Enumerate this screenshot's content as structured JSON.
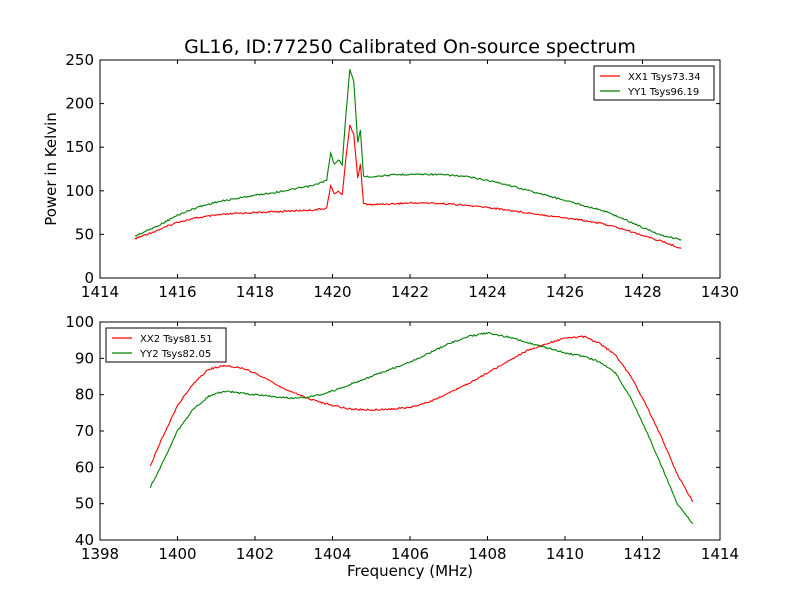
{
  "title": "GL16, ID:77250 Calibrated On-source spectrum",
  "chart_data": [
    {
      "type": "line",
      "xlim": [
        1414,
        1430
      ],
      "ylim": [
        0,
        250
      ],
      "xticks": [
        "1414",
        "1416",
        "1418",
        "1420",
        "1422",
        "1424",
        "1426",
        "1428",
        "1430"
      ],
      "yticks": [
        "0",
        "50",
        "100",
        "150",
        "200",
        "250"
      ],
      "xlabel": "",
      "ylabel": "Power in Kelvin",
      "legend_position": "top-right",
      "series": [
        {
          "name": "XX1 Tsys73.34",
          "color": "#ff0000",
          "x": [
            1414.9,
            1415.5,
            1416.0,
            1416.5,
            1417.0,
            1417.5,
            1418.0,
            1418.5,
            1419.0,
            1419.5,
            1419.85,
            1419.95,
            1420.05,
            1420.15,
            1420.25,
            1420.35,
            1420.45,
            1420.55,
            1420.65,
            1420.72,
            1420.8,
            1420.9,
            1421.5,
            1422.0,
            1422.5,
            1423.0,
            1423.5,
            1424.0,
            1424.5,
            1425.0,
            1425.5,
            1426.0,
            1426.5,
            1427.0,
            1427.5,
            1428.0,
            1428.5,
            1429.0
          ],
          "y": [
            45,
            55,
            64,
            69,
            72,
            74,
            75,
            76,
            77,
            78,
            80,
            106,
            96,
            100,
            95,
            140,
            175,
            165,
            115,
            130,
            86,
            84,
            85,
            86,
            86,
            85,
            83,
            81,
            78,
            75,
            72,
            69,
            66,
            62,
            56,
            49,
            42,
            34
          ]
        },
        {
          "name": "YY1 Tsys96.19",
          "color": "#008000",
          "x": [
            1414.9,
            1415.5,
            1416.0,
            1416.5,
            1417.0,
            1417.5,
            1418.0,
            1418.5,
            1419.0,
            1419.5,
            1419.85,
            1419.95,
            1420.05,
            1420.15,
            1420.25,
            1420.35,
            1420.45,
            1420.55,
            1420.65,
            1420.72,
            1420.8,
            1420.9,
            1421.5,
            1422.0,
            1422.5,
            1423.0,
            1423.5,
            1424.0,
            1424.5,
            1425.0,
            1425.5,
            1426.0,
            1426.5,
            1427.0,
            1427.5,
            1428.0,
            1428.5,
            1429.0
          ],
          "y": [
            48,
            60,
            72,
            81,
            87,
            91,
            95,
            98,
            102,
            106,
            112,
            143,
            130,
            136,
            130,
            190,
            240,
            225,
            155,
            170,
            117,
            116,
            118,
            119,
            119,
            118,
            116,
            112,
            107,
            101,
            95,
            89,
            83,
            77,
            68,
            58,
            49,
            44
          ]
        }
      ]
    },
    {
      "type": "line",
      "xlim": [
        1398,
        1414
      ],
      "ylim": [
        40,
        100
      ],
      "xticks": [
        "1398",
        "1400",
        "1402",
        "1404",
        "1406",
        "1408",
        "1410",
        "1412",
        "1414"
      ],
      "yticks": [
        "40",
        "50",
        "60",
        "70",
        "80",
        "90",
        "100"
      ],
      "xlabel": "Frequency (MHz)",
      "ylabel": "",
      "legend_position": "top-left",
      "series": [
        {
          "name": "XX2 Tsys81.51",
          "color": "#ff0000",
          "x": [
            1399.3,
            1399.6,
            1400.0,
            1400.4,
            1400.8,
            1401.2,
            1401.6,
            1402.0,
            1402.5,
            1403.0,
            1403.5,
            1404.0,
            1404.5,
            1405.0,
            1405.5,
            1406.0,
            1406.5,
            1407.0,
            1407.5,
            1408.0,
            1408.5,
            1409.0,
            1409.5,
            1410.0,
            1410.5,
            1410.9,
            1411.3,
            1411.7,
            1412.1,
            1412.5,
            1412.9,
            1413.3
          ],
          "y": [
            60.5,
            68,
            77,
            83,
            87,
            88,
            87.5,
            86,
            83,
            80.5,
            78.5,
            77,
            76,
            75.8,
            76,
            76.5,
            78,
            80.5,
            83,
            86,
            89,
            92,
            94,
            95.5,
            96,
            94,
            91,
            85,
            77,
            68,
            58,
            50.5
          ]
        },
        {
          "name": "YY2 Tsys82.05",
          "color": "#008000",
          "x": [
            1399.3,
            1399.6,
            1400.0,
            1400.4,
            1400.8,
            1401.2,
            1401.6,
            1402.0,
            1402.5,
            1403.0,
            1403.5,
            1404.0,
            1404.5,
            1405.0,
            1405.5,
            1406.0,
            1406.5,
            1407.0,
            1407.5,
            1408.0,
            1408.5,
            1409.0,
            1409.5,
            1410.0,
            1410.5,
            1410.9,
            1411.3,
            1411.7,
            1412.1,
            1412.5,
            1412.9,
            1413.3
          ],
          "y": [
            54.5,
            61,
            70,
            76,
            79.5,
            81,
            80.5,
            80,
            79.5,
            79,
            79.5,
            81,
            83,
            85,
            87,
            89,
            91.5,
            94,
            96,
            97,
            96,
            94.5,
            93,
            91.5,
            90.5,
            89,
            86,
            79,
            70,
            60,
            50,
            44.5
          ]
        }
      ]
    }
  ]
}
